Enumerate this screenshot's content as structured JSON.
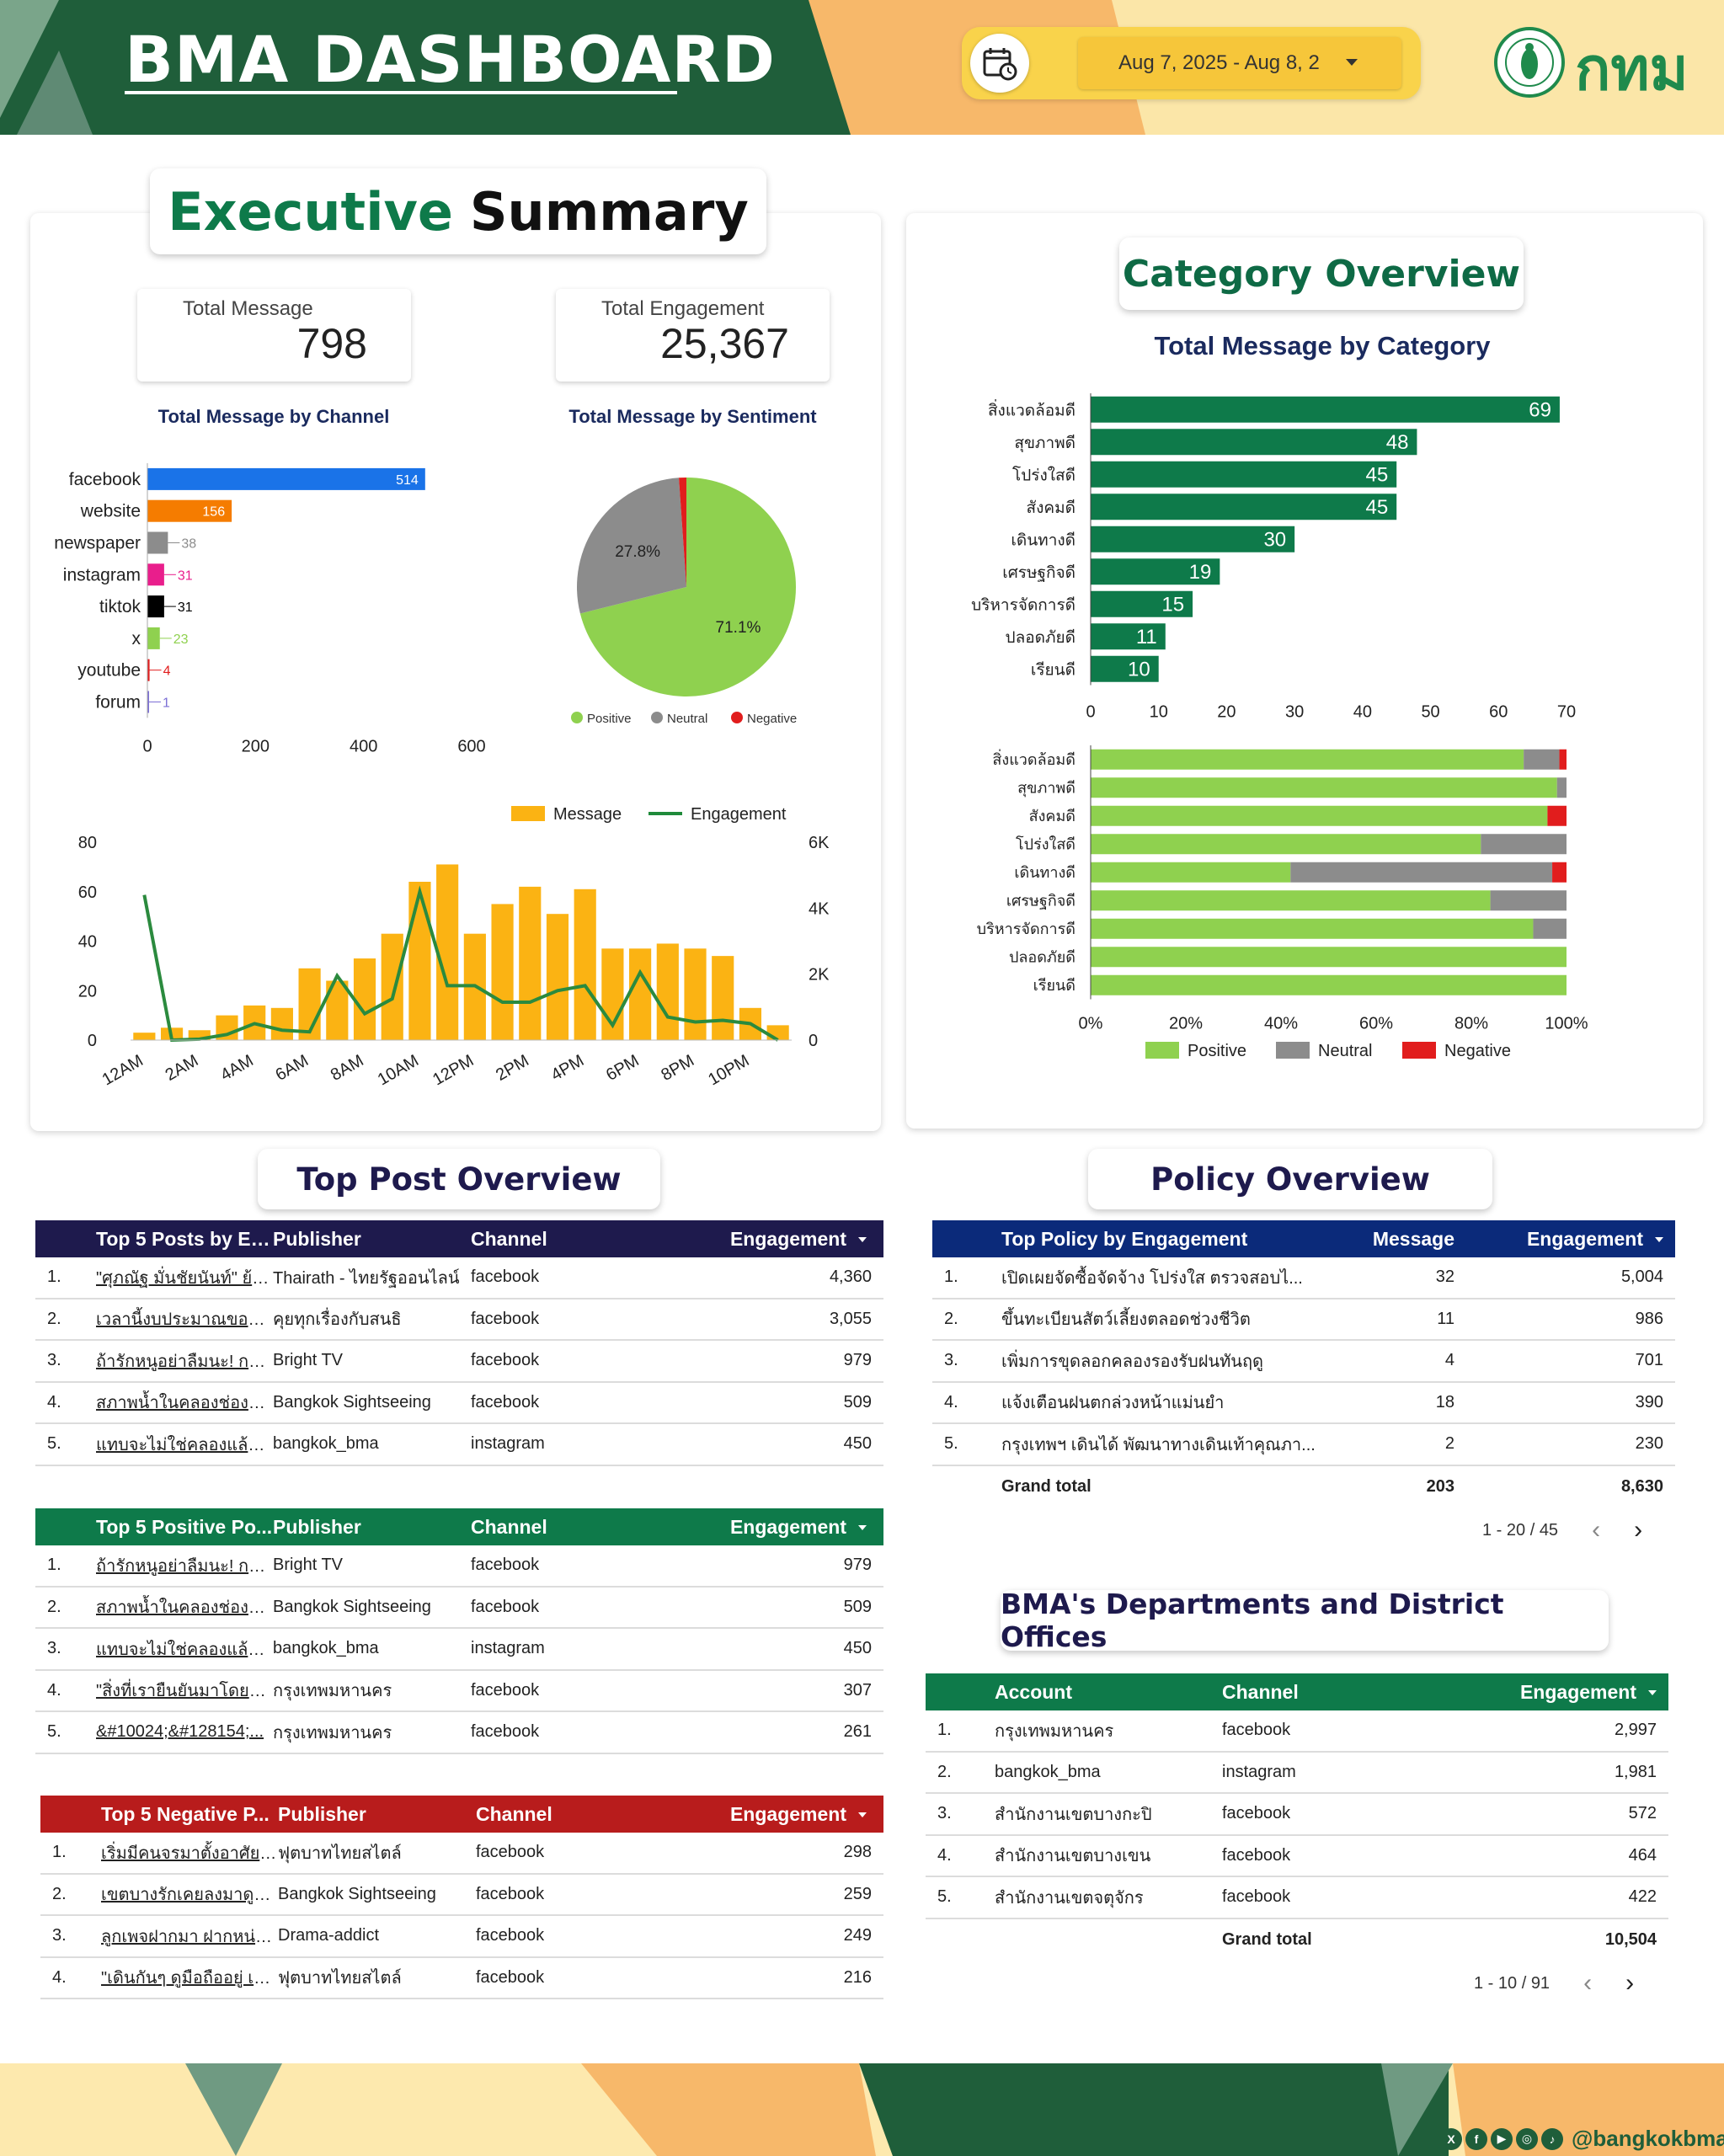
{
  "header": {
    "title": "BMA DASHBOARD",
    "date_range": "Aug 7, 2025 - Aug 8, 2",
    "logo_text": "กทม"
  },
  "colors": {
    "dark_green": "#1f5e3a",
    "bar_green": "#0e7a4a",
    "positive": "#8fd14f",
    "neutral": "#8c8c8c",
    "negative": "#e11d1d",
    "orange": "#f39c1f",
    "navy": "#1e1a4d"
  },
  "executive": {
    "title_a": "Executive",
    "title_b": "Summary",
    "total_message_label": "Total Message",
    "total_message_value": "798",
    "total_engagement_label": "Total Engagement",
    "total_engagement_value": "25,367"
  },
  "category": {
    "title": "Category Overview"
  },
  "top_post": {
    "title": "Top Post Overview"
  },
  "policy": {
    "title": "Policy Overview"
  },
  "departments": {
    "title": "BMA's Departments and District Offices"
  },
  "chart_data": [
    {
      "type": "bar",
      "title": "Total Message by Channel",
      "orientation": "horizontal",
      "categories": [
        "facebook",
        "website",
        "newspaper",
        "instagram",
        "tiktok",
        "x",
        "youtube",
        "forum"
      ],
      "values": [
        514,
        156,
        38,
        31,
        31,
        23,
        4,
        1
      ],
      "colors": [
        "#1a73e8",
        "#f57c00",
        "#8c8c8c",
        "#e91e8c",
        "#000000",
        "#8fd14f",
        "#e11d1d",
        "#7c6fd6"
      ],
      "xlim": [
        0,
        600
      ],
      "xticks": [
        "0",
        "200",
        "400",
        "600"
      ]
    },
    {
      "type": "pie",
      "title": "Total Message by Sentiment",
      "labels": [
        "Positive",
        "Neutral",
        "Negative"
      ],
      "values": [
        71.1,
        27.8,
        1.1
      ],
      "value_labels": [
        "71.1%",
        "27.8%",
        ""
      ],
      "colors": [
        "#8fd14f",
        "#8c8c8c",
        "#e11d1d"
      ],
      "legend": "bottom"
    },
    {
      "type": "bar",
      "subtype": "combo-bar-line",
      "legend_labels": [
        "Message",
        "Engagement"
      ],
      "x": [
        "12AM",
        "1AM",
        "2AM",
        "3AM",
        "4AM",
        "5AM",
        "6AM",
        "7AM",
        "8AM",
        "9AM",
        "10AM",
        "11AM",
        "12PM",
        "1PM",
        "2PM",
        "3PM",
        "4PM",
        "5PM",
        "6PM",
        "7PM",
        "8PM",
        "9PM",
        "10PM",
        "11PM"
      ],
      "xtick_labels": [
        "12AM",
        "2AM",
        "4AM",
        "6AM",
        "8AM",
        "10AM",
        "12PM",
        "2PM",
        "4PM",
        "6PM",
        "8PM",
        "10PM"
      ],
      "series": [
        {
          "name": "Message",
          "type": "bar",
          "axis": "left",
          "values": [
            3,
            5,
            4,
            10,
            14,
            13,
            29,
            24,
            33,
            43,
            64,
            71,
            43,
            55,
            62,
            51,
            61,
            37,
            37,
            39,
            37,
            34,
            13,
            6
          ]
        },
        {
          "name": "Engagement",
          "type": "line",
          "axis": "right",
          "values": [
            4400,
            0,
            30,
            170,
            500,
            300,
            250,
            1950,
            800,
            1250,
            4500,
            1650,
            1650,
            1150,
            1150,
            1500,
            1650,
            450,
            2050,
            700,
            550,
            600,
            500,
            0
          ]
        }
      ],
      "ylim_left": [
        0,
        80
      ],
      "ylim_right": [
        0,
        6000
      ],
      "yticks_left": [
        "0",
        "20",
        "40",
        "60",
        "80"
      ],
      "yticks_right": [
        "0",
        "2K",
        "4K",
        "6K"
      ],
      "legend": "top-right"
    },
    {
      "type": "bar",
      "title": "Total Message by Category",
      "orientation": "horizontal",
      "categories": [
        "สิ่งแวดล้อมดี",
        "สุขภาพดี",
        "โปร่งใสดี",
        "สังคมดี",
        "เดินทางดี",
        "เศรษฐกิจดี",
        "บริหารจัดการดี",
        "ปลอดภัยดี",
        "เรียนดี"
      ],
      "values": [
        69,
        48,
        45,
        45,
        30,
        19,
        15,
        11,
        10
      ],
      "xlim": [
        0,
        70
      ],
      "xticks": [
        "0",
        "10",
        "20",
        "30",
        "40",
        "50",
        "60",
        "70"
      ]
    },
    {
      "type": "bar",
      "subtype": "stacked-100-horizontal",
      "categories": [
        "สิ่งแวดล้อมดี",
        "สุขภาพดี",
        "สังคมดี",
        "โปร่งใสดี",
        "เดินทางดี",
        "เศรษฐกิจดี",
        "บริหารจัดการดี",
        "ปลอดภัยดี",
        "เรียนดี"
      ],
      "series": [
        {
          "name": "Positive",
          "values": [
            91,
            98,
            96,
            82,
            42,
            84,
            93,
            100,
            100
          ]
        },
        {
          "name": "Neutral",
          "values": [
            7.5,
            2,
            0,
            18,
            55,
            16,
            7,
            0,
            0
          ]
        },
        {
          "name": "Negative",
          "values": [
            1.5,
            0,
            4,
            0,
            3,
            0,
            0,
            0,
            0
          ]
        }
      ],
      "xticks": [
        "0%",
        "20%",
        "40%",
        "60%",
        "80%",
        "100%"
      ],
      "legend": "bottom"
    }
  ],
  "tables": {
    "top_engagement": {
      "headers": [
        "Top 5 Posts by En...",
        "Publisher",
        "Channel",
        "Engagement"
      ],
      "rows": [
        [
          "1.",
          "\"ศุภณัฐ มั่นชัยนันท์\" ย้อนถ...",
          "Thairath - ไทยรัฐออนไลน์",
          "facebook",
          "4,360"
        ],
        [
          "2.",
          "เวลานี้งบประมาณของกรุงเ...",
          "คุยทุกเรื่องกับสนธิ",
          "facebook",
          "3,055"
        ],
        [
          "3.",
          "ถ้ารักหนูอย่าลืมนะ! กฎหม...",
          "Bright TV",
          "facebook",
          "979"
        ],
        [
          "4.",
          "สภาพน้ำในคลองช่องนนท...",
          "Bangkok Sightseeing",
          "facebook",
          "509"
        ],
        [
          "5.",
          "แทบจะไม่ใช่คลองแล้ว มีแ...",
          "bangkok_bma",
          "instagram",
          "450"
        ]
      ]
    },
    "top_positive": {
      "headers": [
        "Top 5 Positive Po...",
        "Publisher",
        "Channel",
        "Engagement"
      ],
      "rows": [
        [
          "1.",
          "ถ้ารักหนูอย่าลืมนะ! กฎหม...",
          "Bright TV",
          "facebook",
          "979"
        ],
        [
          "2.",
          "สภาพน้ำในคลองช่องนนท...",
          "Bangkok Sightseeing",
          "facebook",
          "509"
        ],
        [
          "3.",
          "แทบจะไม่ใช่คลองแล้ว มีแ...",
          "bangkok_bma",
          "instagram",
          "450"
        ],
        [
          "4.",
          "\"สิ่งที่เรายืนยันมาโดยตลอ...",
          "กรุงเทพมหานคร",
          "facebook",
          "307"
        ],
        [
          "5.",
          "&#10024;&#128154;...",
          "กรุงเทพมหานคร",
          "facebook",
          "261"
        ]
      ]
    },
    "top_negative": {
      "headers": [
        "Top 5 Negative P...",
        "Publisher",
        "Channel",
        "Engagement"
      ],
      "rows": [
        [
          "1.",
          "เริ่มมีคนจรมาตั้งอาศัย ระห...",
          "ฟุตบาทไทยสไตล์",
          "facebook",
          "298"
        ],
        [
          "2.",
          "เขตบางรักเคยลงมาดูพื้นที่...",
          "Bangkok Sightseeing",
          "facebook",
          "259"
        ],
        [
          "3.",
          "ลูกเพจฝากมา ฝากหน่วยง...",
          "Drama-addict",
          "facebook",
          "249"
        ],
        [
          "4.",
          "\"เดินกันๆ ดูมือถืออยู่ เงยห...",
          "ฟุตบาทไทยสไตล์",
          "facebook",
          "216"
        ]
      ]
    },
    "policy": {
      "headers": [
        "Top Policy by Engagement",
        "Message",
        "Engagement"
      ],
      "rows": [
        [
          "1.",
          "เปิดเผยจัดซื้อจัดจ้าง โปร่งใส ตรวจสอบไ...",
          "32",
          "5,004"
        ],
        [
          "2.",
          "ขึ้นทะเบียนสัตว์เลี้ยงตลอดช่วงชีวิต",
          "11",
          "986"
        ],
        [
          "3.",
          "เพิ่มการขุดลอกคลองรองรับฝนทันฤดู",
          "4",
          "701"
        ],
        [
          "4.",
          "แจ้งเตือนฝนตกล่วงหน้าแม่นยำ",
          "18",
          "390"
        ],
        [
          "5.",
          "กรุงเทพฯ เดินได้ พัฒนาทางเดินเท้าคุณภา...",
          "2",
          "230"
        ]
      ],
      "total_label": "Grand total",
      "total_message": "203",
      "total_engagement": "8,630",
      "pager": "1 - 20 / 45"
    },
    "departments": {
      "headers": [
        "Account",
        "Channel",
        "Engagement"
      ],
      "rows": [
        [
          "1.",
          "กรุงเทพมหานคร",
          "facebook",
          "2,997"
        ],
        [
          "2.",
          "bangkok_bma",
          "instagram",
          "1,981"
        ],
        [
          "3.",
          "สำนักงานเขตบางกะปิ",
          "facebook",
          "572"
        ],
        [
          "4.",
          "สำนักงานเขตบางเขน",
          "facebook",
          "464"
        ],
        [
          "5.",
          "สำนักงานเขตจตุจักร",
          "facebook",
          "422"
        ]
      ],
      "total_label": "Grand total",
      "total_engagement": "10,504",
      "pager": "1 - 10 / 91"
    }
  },
  "footer": {
    "handle": "@bangkokbma",
    "social_icons": [
      "x-icon",
      "facebook-icon",
      "youtube-icon",
      "instagram-icon",
      "tiktok-icon"
    ]
  }
}
